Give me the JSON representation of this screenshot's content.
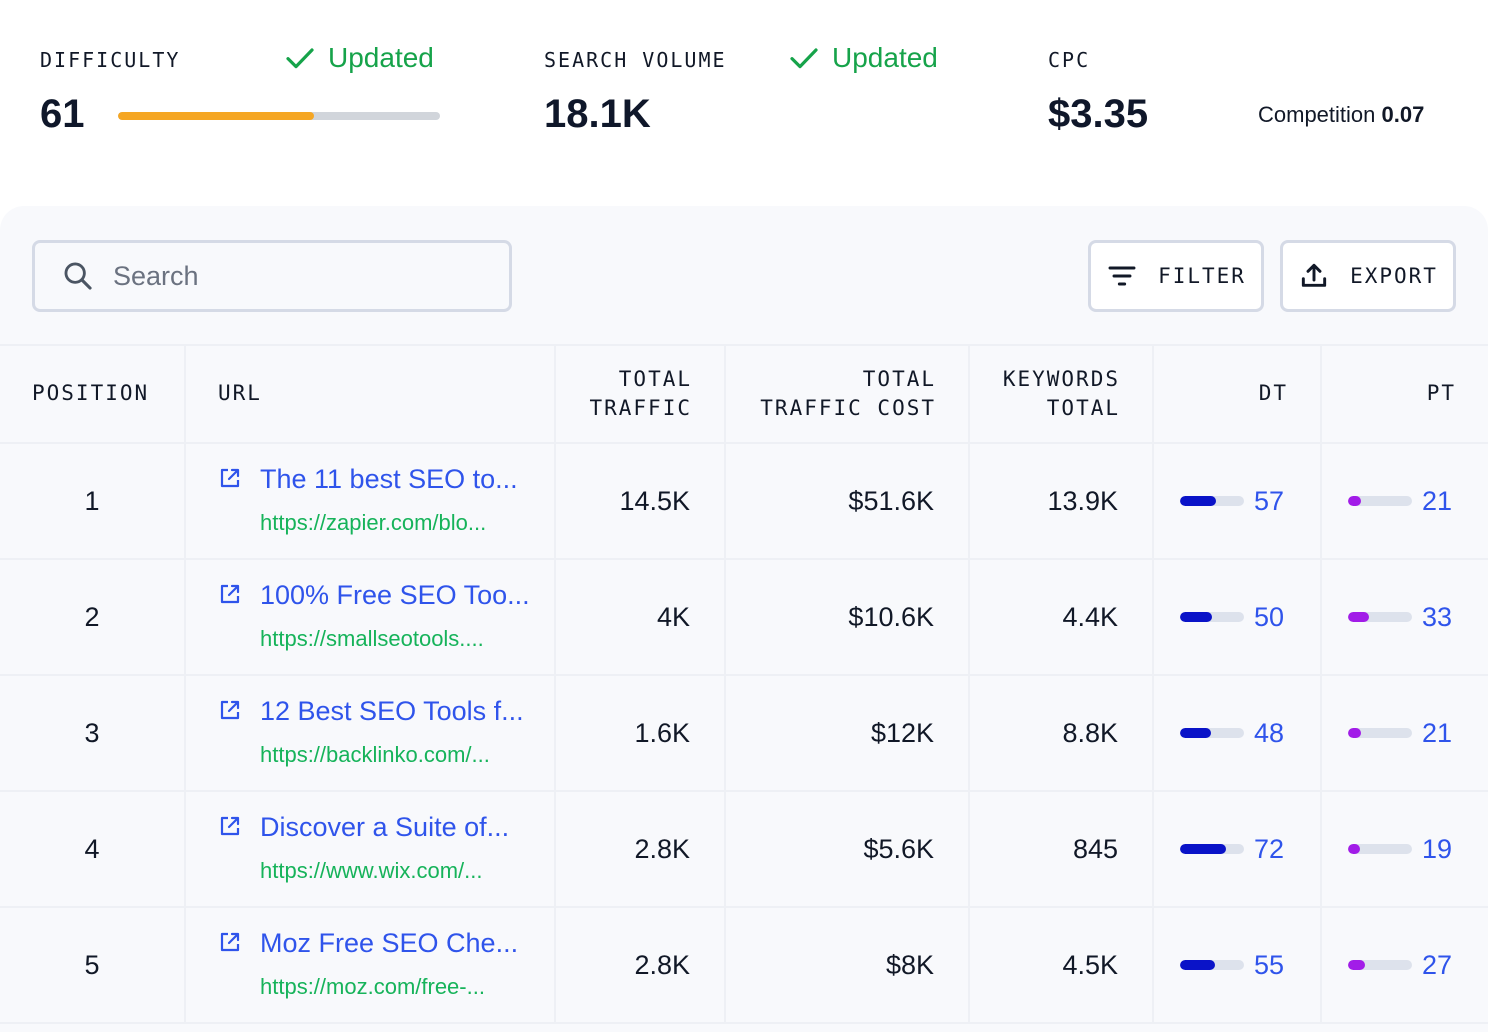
{
  "metrics": {
    "difficulty": {
      "label": "DIFFICULTY",
      "value": "61",
      "status": "Updated",
      "progress": 0.61,
      "bar_color": "#f5a623"
    },
    "search_volume": {
      "label": "SEARCH VOLUME",
      "value": "18.1K",
      "status": "Updated"
    },
    "cpc": {
      "label": "CPC",
      "value": "$3.35",
      "competition_label": "Competition",
      "competition_value": "0.07"
    }
  },
  "toolbar": {
    "search_placeholder": "Search",
    "filter_label": "FILTER",
    "export_label": "EXPORT"
  },
  "table": {
    "headers": {
      "position": "POSITION",
      "url": "URL",
      "total_traffic_1": "TOTAL",
      "total_traffic_2": "TRAFFIC",
      "traffic_cost_1": "TOTAL",
      "traffic_cost_2": "TRAFFIC COST",
      "keywords_1": "KEYWORDS",
      "keywords_2": "TOTAL",
      "dt": "DT",
      "pt": "PT"
    },
    "rows": [
      {
        "position": "1",
        "title": "The 11 best SEO to...",
        "url": "https://zapier.com/blo...",
        "traffic": "14.5K",
        "cost": "$51.6K",
        "keywords": "13.9K",
        "dt": "57",
        "pt": "21"
      },
      {
        "position": "2",
        "title": "100% Free SEO Too...",
        "url": "https://smallseotools....",
        "traffic": "4K",
        "cost": "$10.6K",
        "keywords": "4.4K",
        "dt": "50",
        "pt": "33"
      },
      {
        "position": "3",
        "title": "12 Best SEO Tools f...",
        "url": "https://backlinko.com/...",
        "traffic": "1.6K",
        "cost": "$12K",
        "keywords": "8.8K",
        "dt": "48",
        "pt": "21"
      },
      {
        "position": "4",
        "title": "Discover a Suite of...",
        "url": "https://www.wix.com/...",
        "traffic": "2.8K",
        "cost": "$5.6K",
        "keywords": "845",
        "dt": "72",
        "pt": "19"
      },
      {
        "position": "5",
        "title": "Moz Free SEO Che...",
        "url": "https://moz.com/free-...",
        "traffic": "2.8K",
        "cost": "$8K",
        "keywords": "4.5K",
        "dt": "55",
        "pt": "27"
      }
    ]
  },
  "colors": {
    "accent_blue": "#2f54eb",
    "success_green": "#16a34a",
    "url_green": "#16b35a",
    "dt_bar": "#0a13c8",
    "pt_bar": "#a21ce8"
  },
  "icons": [
    "check-icon",
    "search-icon",
    "filter-icon",
    "upload-icon",
    "external-link-icon"
  ]
}
